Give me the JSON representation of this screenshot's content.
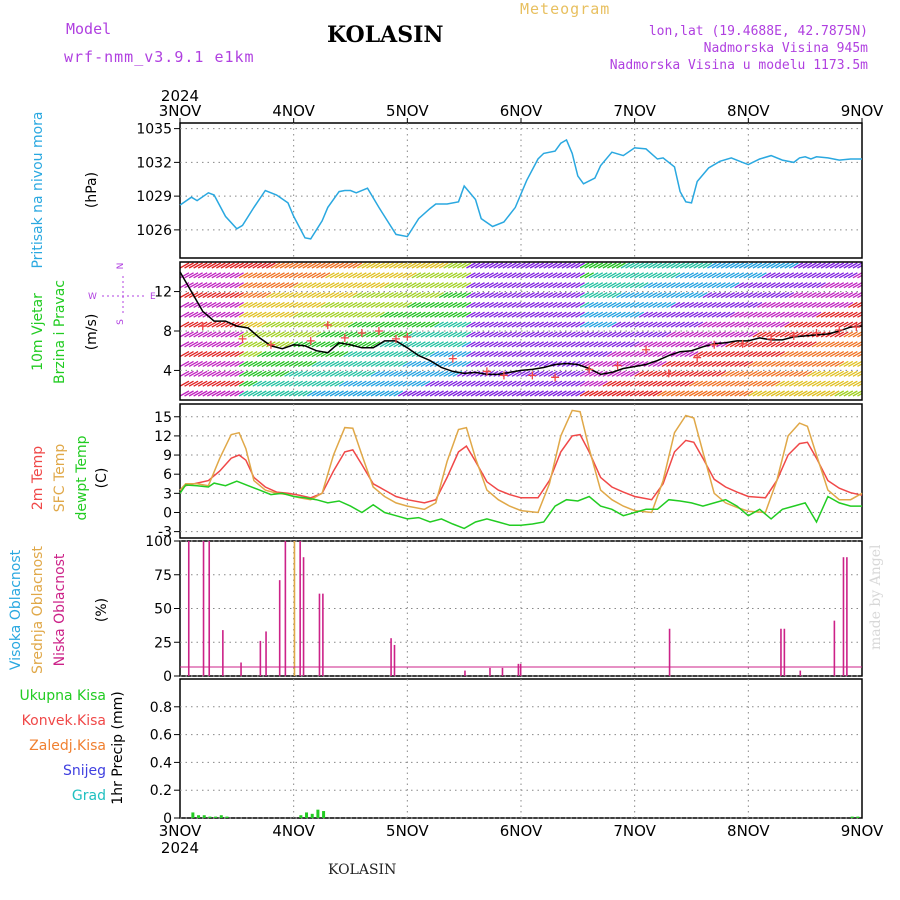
{
  "header": {
    "model_label": "Model",
    "model_run": "wrf-nmm_v3.9.1  e1km",
    "station": "KOLASIN",
    "product": "Meteogram",
    "lonlat": "lon,lat (19.4688E, 42.7875N)",
    "elevation": "Nadmorska Visina 945m",
    "model_elevation": "Nadmorska Visina u modelu 1173.5m"
  },
  "footer": {
    "station": "KOLASIN",
    "credit": "made by Angel"
  },
  "colors": {
    "pressure": "#2aa8e0",
    "temp2m": "#f04848",
    "sfc": "#e0a848",
    "dewpt": "#22cc22",
    "cloud": "#cc2288",
    "wind_obs": "#f04848",
    "wind_line": "#000000"
  },
  "chart_data": [
    {
      "type": "line",
      "panel": "pressure",
      "ylabel": [
        "Pritisak na nivou mora",
        "(hPa)"
      ],
      "ylim": [
        1023.5,
        1035.5
      ],
      "yticks": [
        1026,
        1029,
        1032,
        1035
      ],
      "xlabels": [
        "3NOV",
        "4NOV",
        "5NOV",
        "6NOV",
        "7NOV",
        "8NOV",
        "9NOV"
      ],
      "year": "2024",
      "grid": true,
      "series": [
        {
          "color": "#2aa8e0",
          "x": [
            0,
            0.1,
            0.15,
            0.25,
            0.3,
            0.4,
            0.5,
            0.55,
            0.65,
            0.75,
            0.85,
            0.95,
            1.0,
            1.1,
            1.15,
            1.25,
            1.3,
            1.4,
            1.45,
            1.5,
            1.55,
            1.65,
            1.75,
            1.9,
            2.0,
            2.1,
            2.2,
            2.25,
            2.35,
            2.45,
            2.5,
            2.6,
            2.65,
            2.75,
            2.85,
            2.95,
            3.05,
            3.15,
            3.2,
            3.3,
            3.35,
            3.4,
            3.45,
            3.5,
            3.55,
            3.65,
            3.7,
            3.8,
            3.9,
            4.0,
            4.1,
            4.2,
            4.25,
            4.35,
            4.4,
            4.45,
            4.5,
            4.55,
            4.65,
            4.75,
            4.85,
            4.95,
            5.0,
            5.1,
            5.2,
            5.3,
            5.4,
            5.45,
            5.5,
            5.55,
            5.6,
            5.7,
            5.8,
            5.9,
            6.0
          ],
          "y": [
            1028.2,
            1028.9,
            1028.6,
            1029.3,
            1029.1,
            1027.2,
            1026.1,
            1026.4,
            1028.0,
            1029.5,
            1029.1,
            1028.4,
            1027.2,
            1025.3,
            1025.2,
            1026.8,
            1028.0,
            1029.4,
            1029.5,
            1029.5,
            1029.3,
            1029.7,
            1028.0,
            1025.6,
            1025.4,
            1027.0,
            1027.9,
            1028.3,
            1028.3,
            1028.5,
            1029.9,
            1028.7,
            1027.0,
            1026.3,
            1026.7,
            1028.0,
            1030.4,
            1032.3,
            1032.8,
            1033.0,
            1033.7,
            1034.0,
            1032.8,
            1030.8,
            1030.1,
            1030.6,
            1031.7,
            1032.9,
            1032.6,
            1033.3,
            1033.2,
            1032.3,
            1032.4,
            1031.6,
            1029.4,
            1028.5,
            1028.4,
            1030.3,
            1031.5,
            1032.1,
            1032.4,
            1032.0,
            1031.8,
            1032.3,
            1032.6,
            1032.2,
            1032.0,
            1032.4,
            1032.5,
            1032.3,
            1032.5,
            1032.4,
            1032.2,
            1032.3,
            1032.3
          ]
        }
      ]
    },
    {
      "type": "line",
      "panel": "wind",
      "ylabel": [
        "10m Vjetar",
        "Brzina i Pravac",
        "(m/s)"
      ],
      "ylim": [
        1,
        15
      ],
      "yticks": [
        4,
        8,
        12
      ],
      "compass": {
        "w": "W",
        "e": "E",
        "n": "N",
        "s": "S"
      },
      "grid": true,
      "series": [
        {
          "name": "wind_speed",
          "color": "#000000",
          "x": [
            0,
            0.1,
            0.2,
            0.3,
            0.4,
            0.5,
            0.6,
            0.7,
            0.8,
            0.9,
            1.0,
            1.1,
            1.2,
            1.3,
            1.4,
            1.5,
            1.6,
            1.7,
            1.8,
            1.9,
            2.0,
            2.1,
            2.2,
            2.3,
            2.4,
            2.5,
            2.6,
            2.7,
            2.8,
            2.9,
            3.0,
            3.1,
            3.2,
            3.3,
            3.4,
            3.5,
            3.6,
            3.7,
            3.8,
            3.9,
            4.0,
            4.1,
            4.2,
            4.3,
            4.4,
            4.5,
            4.6,
            4.7,
            4.8,
            4.9,
            5.0,
            5.1,
            5.2,
            5.3,
            5.4,
            5.5,
            5.6,
            5.7,
            5.8,
            5.9,
            6.0
          ],
          "y": [
            14,
            12,
            10,
            9,
            9,
            8.5,
            8.3,
            7.3,
            6.5,
            6.2,
            6.6,
            6.5,
            6.0,
            5.8,
            6.8,
            6.6,
            6.3,
            6.3,
            7.0,
            7.0,
            6.3,
            5.5,
            5.0,
            4.3,
            3.9,
            3.7,
            3.8,
            3.6,
            3.6,
            3.8,
            4.0,
            4.1,
            4.3,
            4.6,
            4.7,
            4.6,
            4.2,
            3.6,
            3.8,
            4.2,
            4.4,
            4.6,
            5.0,
            5.5,
            5.9,
            6.0,
            6.4,
            6.7,
            6.8,
            7.0,
            7.0,
            7.3,
            7.1,
            7.1,
            7.4,
            7.5,
            7.6,
            7.7,
            8.0,
            8.4,
            8.5
          ]
        },
        {
          "name": "wind_obs",
          "color": "#f04848",
          "marker": "+",
          "x": [
            0.2,
            0.55,
            0.8,
            1.15,
            1.3,
            1.45,
            1.6,
            1.75,
            1.9,
            2.0,
            2.4,
            2.7,
            2.85,
            3.1,
            3.3,
            3.6,
            3.85,
            4.1,
            4.3,
            4.55,
            4.7,
            4.95,
            5.2,
            5.4,
            5.6,
            5.8,
            5.95
          ],
          "y": [
            8.5,
            7.2,
            6.6,
            7.0,
            8.6,
            7.3,
            7.8,
            8.0,
            7.2,
            7.4,
            5.2,
            3.9,
            3.5,
            3.5,
            3.3,
            4.1,
            4.5,
            6.1,
            3.7,
            5.3,
            6.6,
            6.7,
            7.2,
            7.5,
            7.8,
            8.1,
            8.4
          ]
        }
      ]
    },
    {
      "type": "line",
      "panel": "temperature",
      "ylabel": [
        "2m Temp",
        "SFC Temp",
        "dewpt Temp",
        "(C)"
      ],
      "ylim": [
        -4,
        17
      ],
      "yticks": [
        -3,
        0,
        3,
        6,
        9,
        12,
        15
      ],
      "grid": true,
      "series": [
        {
          "name": "2m Temp",
          "color": "#f04848",
          "x": [
            0,
            0.05,
            0.15,
            0.25,
            0.35,
            0.45,
            0.52,
            0.58,
            0.65,
            0.75,
            0.85,
            0.95,
            1.05,
            1.15,
            1.25,
            1.35,
            1.45,
            1.52,
            1.6,
            1.7,
            1.8,
            1.9,
            2.0,
            2.15,
            2.25,
            2.35,
            2.45,
            2.52,
            2.6,
            2.7,
            2.8,
            2.9,
            3.0,
            3.15,
            3.25,
            3.35,
            3.45,
            3.52,
            3.6,
            3.7,
            3.8,
            3.9,
            4.0,
            4.15,
            4.25,
            4.35,
            4.45,
            4.52,
            4.6,
            4.7,
            4.8,
            4.9,
            5.0,
            5.15,
            5.25,
            5.35,
            5.45,
            5.52,
            5.6,
            5.7,
            5.8,
            5.9,
            6.0
          ],
          "y": [
            3.5,
            4.2,
            4.6,
            5.0,
            6.5,
            8.5,
            9.0,
            8.2,
            5.5,
            4.0,
            3.2,
            3.0,
            2.7,
            2.3,
            3.0,
            6.5,
            9.5,
            9.8,
            7.5,
            4.5,
            3.5,
            2.5,
            2.0,
            1.5,
            2.0,
            5.5,
            9.5,
            10.4,
            8.0,
            4.8,
            3.5,
            2.8,
            2.3,
            2.3,
            5.0,
            9.5,
            12.0,
            12.2,
            9.5,
            5.5,
            4.0,
            3.2,
            2.5,
            2.0,
            4.5,
            9.5,
            11.3,
            11.0,
            8.5,
            5.2,
            4.0,
            3.2,
            2.5,
            2.3,
            5.0,
            9.0,
            10.8,
            11.0,
            8.5,
            5.0,
            3.8,
            3.1,
            2.7
          ]
        },
        {
          "name": "SFC Temp",
          "color": "#e0a848",
          "x": [
            0,
            0.05,
            0.15,
            0.25,
            0.35,
            0.45,
            0.52,
            0.58,
            0.65,
            0.75,
            0.85,
            0.95,
            1.05,
            1.15,
            1.25,
            1.35,
            1.45,
            1.52,
            1.6,
            1.7,
            1.8,
            1.9,
            2.0,
            2.15,
            2.25,
            2.35,
            2.45,
            2.52,
            2.6,
            2.7,
            2.8,
            2.9,
            3.0,
            3.15,
            3.25,
            3.35,
            3.45,
            3.52,
            3.6,
            3.7,
            3.8,
            3.9,
            4.0,
            4.15,
            4.25,
            4.35,
            4.45,
            4.52,
            4.6,
            4.7,
            4.8,
            4.9,
            5.0,
            5.15,
            5.25,
            5.35,
            5.45,
            5.52,
            5.6,
            5.7,
            5.8,
            5.9,
            6.0
          ],
          "y": [
            3.5,
            4.5,
            4.5,
            4.2,
            8.5,
            12.2,
            12.5,
            10.0,
            5.0,
            3.5,
            3.0,
            2.8,
            2.3,
            2.0,
            3.0,
            9.0,
            13.3,
            13.2,
            9.0,
            4.0,
            2.5,
            1.5,
            1.0,
            0.5,
            1.5,
            8.0,
            13.0,
            13.3,
            8.5,
            3.5,
            2.0,
            1.0,
            0.3,
            0.0,
            4.5,
            12.0,
            16.0,
            15.8,
            10.0,
            3.5,
            2.0,
            1.0,
            0.3,
            0.0,
            5.0,
            12.5,
            15.2,
            14.8,
            9.5,
            3.0,
            1.5,
            0.8,
            0.2,
            0.0,
            5.0,
            12.0,
            14.0,
            13.5,
            9.0,
            3.5,
            2.0,
            2.0,
            3.0
          ]
        },
        {
          "name": "dewpt Temp",
          "color": "#22cc22",
          "x": [
            0,
            0.05,
            0.15,
            0.25,
            0.3,
            0.4,
            0.5,
            0.6,
            0.7,
            0.8,
            0.9,
            1.0,
            1.1,
            1.2,
            1.3,
            1.4,
            1.5,
            1.6,
            1.7,
            1.8,
            1.9,
            2.0,
            2.1,
            2.2,
            2.3,
            2.4,
            2.5,
            2.6,
            2.7,
            2.8,
            2.9,
            3.0,
            3.1,
            3.2,
            3.3,
            3.4,
            3.5,
            3.6,
            3.7,
            3.8,
            3.9,
            4.0,
            4.1,
            4.2,
            4.3,
            4.4,
            4.5,
            4.6,
            4.7,
            4.8,
            4.9,
            5.0,
            5.1,
            5.2,
            5.3,
            5.4,
            5.5,
            5.6,
            5.7,
            5.8,
            5.9,
            6.0
          ],
          "y": [
            3.0,
            4.3,
            4.2,
            4.0,
            4.6,
            4.2,
            4.9,
            4.2,
            3.5,
            2.8,
            3.0,
            2.5,
            2.3,
            2.0,
            1.5,
            1.8,
            1.0,
            0.0,
            1.2,
            0.0,
            -0.5,
            -1.0,
            -0.8,
            -1.5,
            -1.0,
            -1.8,
            -2.5,
            -1.5,
            -1.0,
            -1.5,
            -2.0,
            -2.0,
            -1.8,
            -1.5,
            1.0,
            2.0,
            1.8,
            2.5,
            1.0,
            0.5,
            -0.5,
            0.0,
            0.5,
            0.5,
            2.0,
            1.8,
            1.5,
            1.0,
            1.5,
            2.0,
            1.0,
            -0.5,
            0.5,
            -1.0,
            0.5,
            1.0,
            1.5,
            -1.5,
            2.5,
            1.5,
            1.0,
            1.0
          ]
        }
      ]
    },
    {
      "type": "bar",
      "panel": "clouds",
      "ylabel": [
        "Visoka Oblacnost",
        "Srednja Oblacnost",
        "Niska Oblacnost",
        "(%)"
      ],
      "ylim": [
        0,
        100
      ],
      "yticks": [
        0,
        25,
        50,
        75,
        100
      ],
      "grid": true,
      "series": [
        {
          "name": "Niska Oblacnost",
          "color": "#cc2288",
          "x": [
            0.07,
            0.2,
            0.25,
            0.37,
            0.53,
            0.7,
            0.75,
            0.87,
            0.92,
            1.05,
            1.08,
            1.22,
            1.25,
            1.85,
            1.88,
            2.5,
            2.72,
            2.83,
            2.97,
            2.99,
            4.3,
            5.28,
            5.31,
            5.45,
            5.75,
            5.83,
            5.86
          ],
          "y": [
            100,
            100,
            100,
            34,
            10,
            26,
            33,
            71,
            100,
            100,
            88,
            61,
            61,
            28,
            23,
            4,
            6,
            6,
            9,
            9,
            35,
            35,
            35,
            4,
            41,
            88,
            88
          ]
        },
        {
          "name": "Srednja Oblacnost",
          "color": "#e0a848",
          "x": [
            1.0
          ],
          "y": [
            100
          ]
        }
      ]
    },
    {
      "type": "bar",
      "panel": "precip",
      "ylabel": [
        "1hr Precip (mm)"
      ],
      "ylim": [
        0,
        1.0
      ],
      "yticks": [
        0,
        0.2,
        0.4,
        0.6,
        0.8
      ],
      "legend": [
        "Ukupna Kisa",
        "Konvek.Kisa",
        "Zaledj.Kisa",
        "Snijeg",
        "Grad"
      ],
      "legend_colors": [
        "#22cc22",
        "#f04848",
        "#f08030",
        "#4040e0",
        "#20c0c0"
      ],
      "grid": true,
      "series": [
        {
          "name": "Ukupna Kisa",
          "color": "#22cc22",
          "x": [
            0.1,
            0.15,
            0.2,
            0.25,
            0.3,
            0.35,
            0.4,
            1.05,
            1.1,
            1.15,
            1.2,
            1.25,
            5.9,
            5.95
          ],
          "y": [
            0.04,
            0.02,
            0.02,
            0.01,
            0.01,
            0.02,
            0.01,
            0.02,
            0.04,
            0.03,
            0.06,
            0.05,
            0.01,
            0.01
          ]
        }
      ]
    }
  ]
}
